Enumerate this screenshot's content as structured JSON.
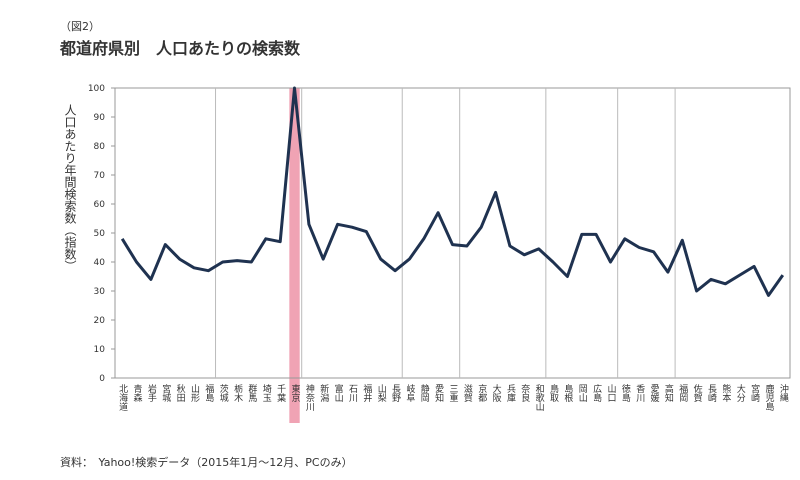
{
  "chart_data": {
    "type": "line",
    "caption": "（図2）",
    "title": "都道府県別　人口あたりの検索数",
    "ylabel": "人口あたり年間検索数（指数）",
    "source": "資料：　Yahoo!検索データ（2015年1月〜12月、PCのみ）",
    "categories": [
      "北海道",
      "青森",
      "岩手",
      "宮城",
      "秋田",
      "山形",
      "福島",
      "茨城",
      "栃木",
      "群馬",
      "埼玉",
      "千葉",
      "東京",
      "神奈川",
      "新潟",
      "富山",
      "石川",
      "福井",
      "山梨",
      "長野",
      "岐阜",
      "静岡",
      "愛知",
      "三重",
      "滋賀",
      "京都",
      "大阪",
      "兵庫",
      "奈良",
      "和歌山",
      "鳥取",
      "島根",
      "岡山",
      "広島",
      "山口",
      "徳島",
      "香川",
      "愛媛",
      "高知",
      "福岡",
      "佐賀",
      "長崎",
      "熊本",
      "大分",
      "宮崎",
      "鹿児島",
      "沖縄"
    ],
    "values": [
      48,
      40,
      34,
      46,
      41,
      38,
      37,
      40,
      40.5,
      40,
      48,
      47,
      100,
      53,
      41,
      53,
      52,
      50.5,
      41,
      37,
      41,
      48,
      57,
      46,
      45.5,
      52,
      64,
      45.5,
      42.5,
      44.5,
      40,
      35,
      49.5,
      49.5,
      40,
      48,
      45,
      43.5,
      36.5,
      47.5,
      30,
      34,
      32.5,
      35.5,
      38.5,
      28.5,
      35.5
    ],
    "color": "#1f3250",
    "highlight_index": 12,
    "highlight_color": "#f0a3b4",
    "ylim": [
      0,
      100
    ],
    "yticks": [
      0,
      10,
      20,
      30,
      40,
      50,
      60,
      70,
      80,
      90,
      100
    ],
    "grid": false
  }
}
